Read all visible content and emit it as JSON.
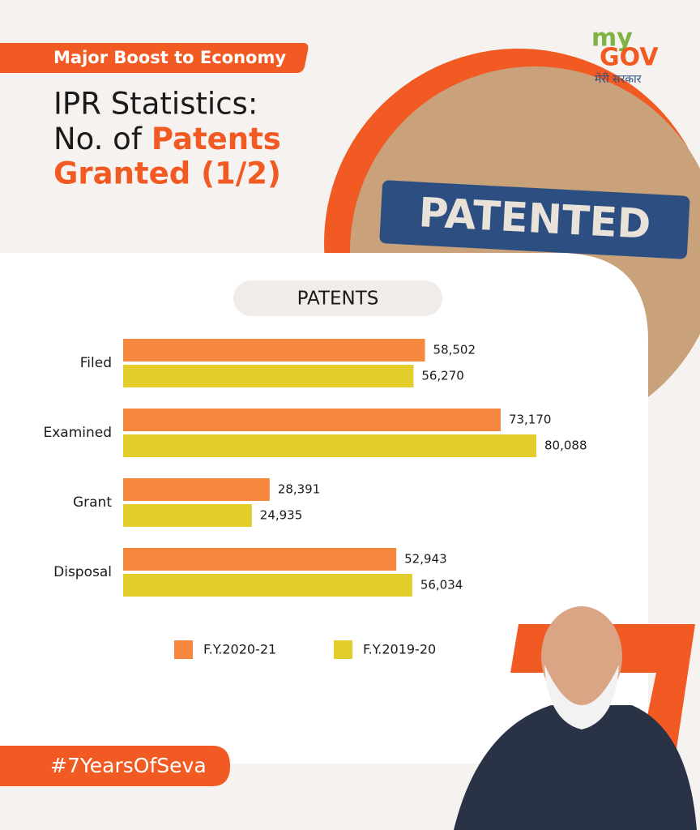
{
  "header": {
    "tag": "Major Boost to Economy",
    "title_line1": "IPR Statistics:",
    "title_line2_prefix": "No. of",
    "title_line2_highlight": "Patents",
    "title_line3": "Granted (1/2)"
  },
  "logo": {
    "my": "my",
    "gov": "GOV",
    "tagline": "मेरी सरकार"
  },
  "image_text": "PATENTED",
  "chart_data": {
    "type": "hbar",
    "title": "PATENTS",
    "categories": [
      "Filed",
      "Examined",
      "Grant",
      "Disposal"
    ],
    "series": [
      {
        "name": "F.Y.2020-21",
        "color": "#f5873f",
        "values": [
          58502,
          73170,
          28391,
          52943
        ],
        "value_labels": [
          "58,502",
          "73,170",
          "28,391",
          "52,943"
        ]
      },
      {
        "name": "F.Y.2019-20",
        "color": "#e3cd2b",
        "values": [
          56270,
          80088,
          24935,
          56034
        ],
        "value_labels": [
          "56,270",
          "80,088",
          "24,935",
          "56,034"
        ]
      }
    ]
  },
  "footer": {
    "hashtag": "#7YearsOfSeva"
  }
}
